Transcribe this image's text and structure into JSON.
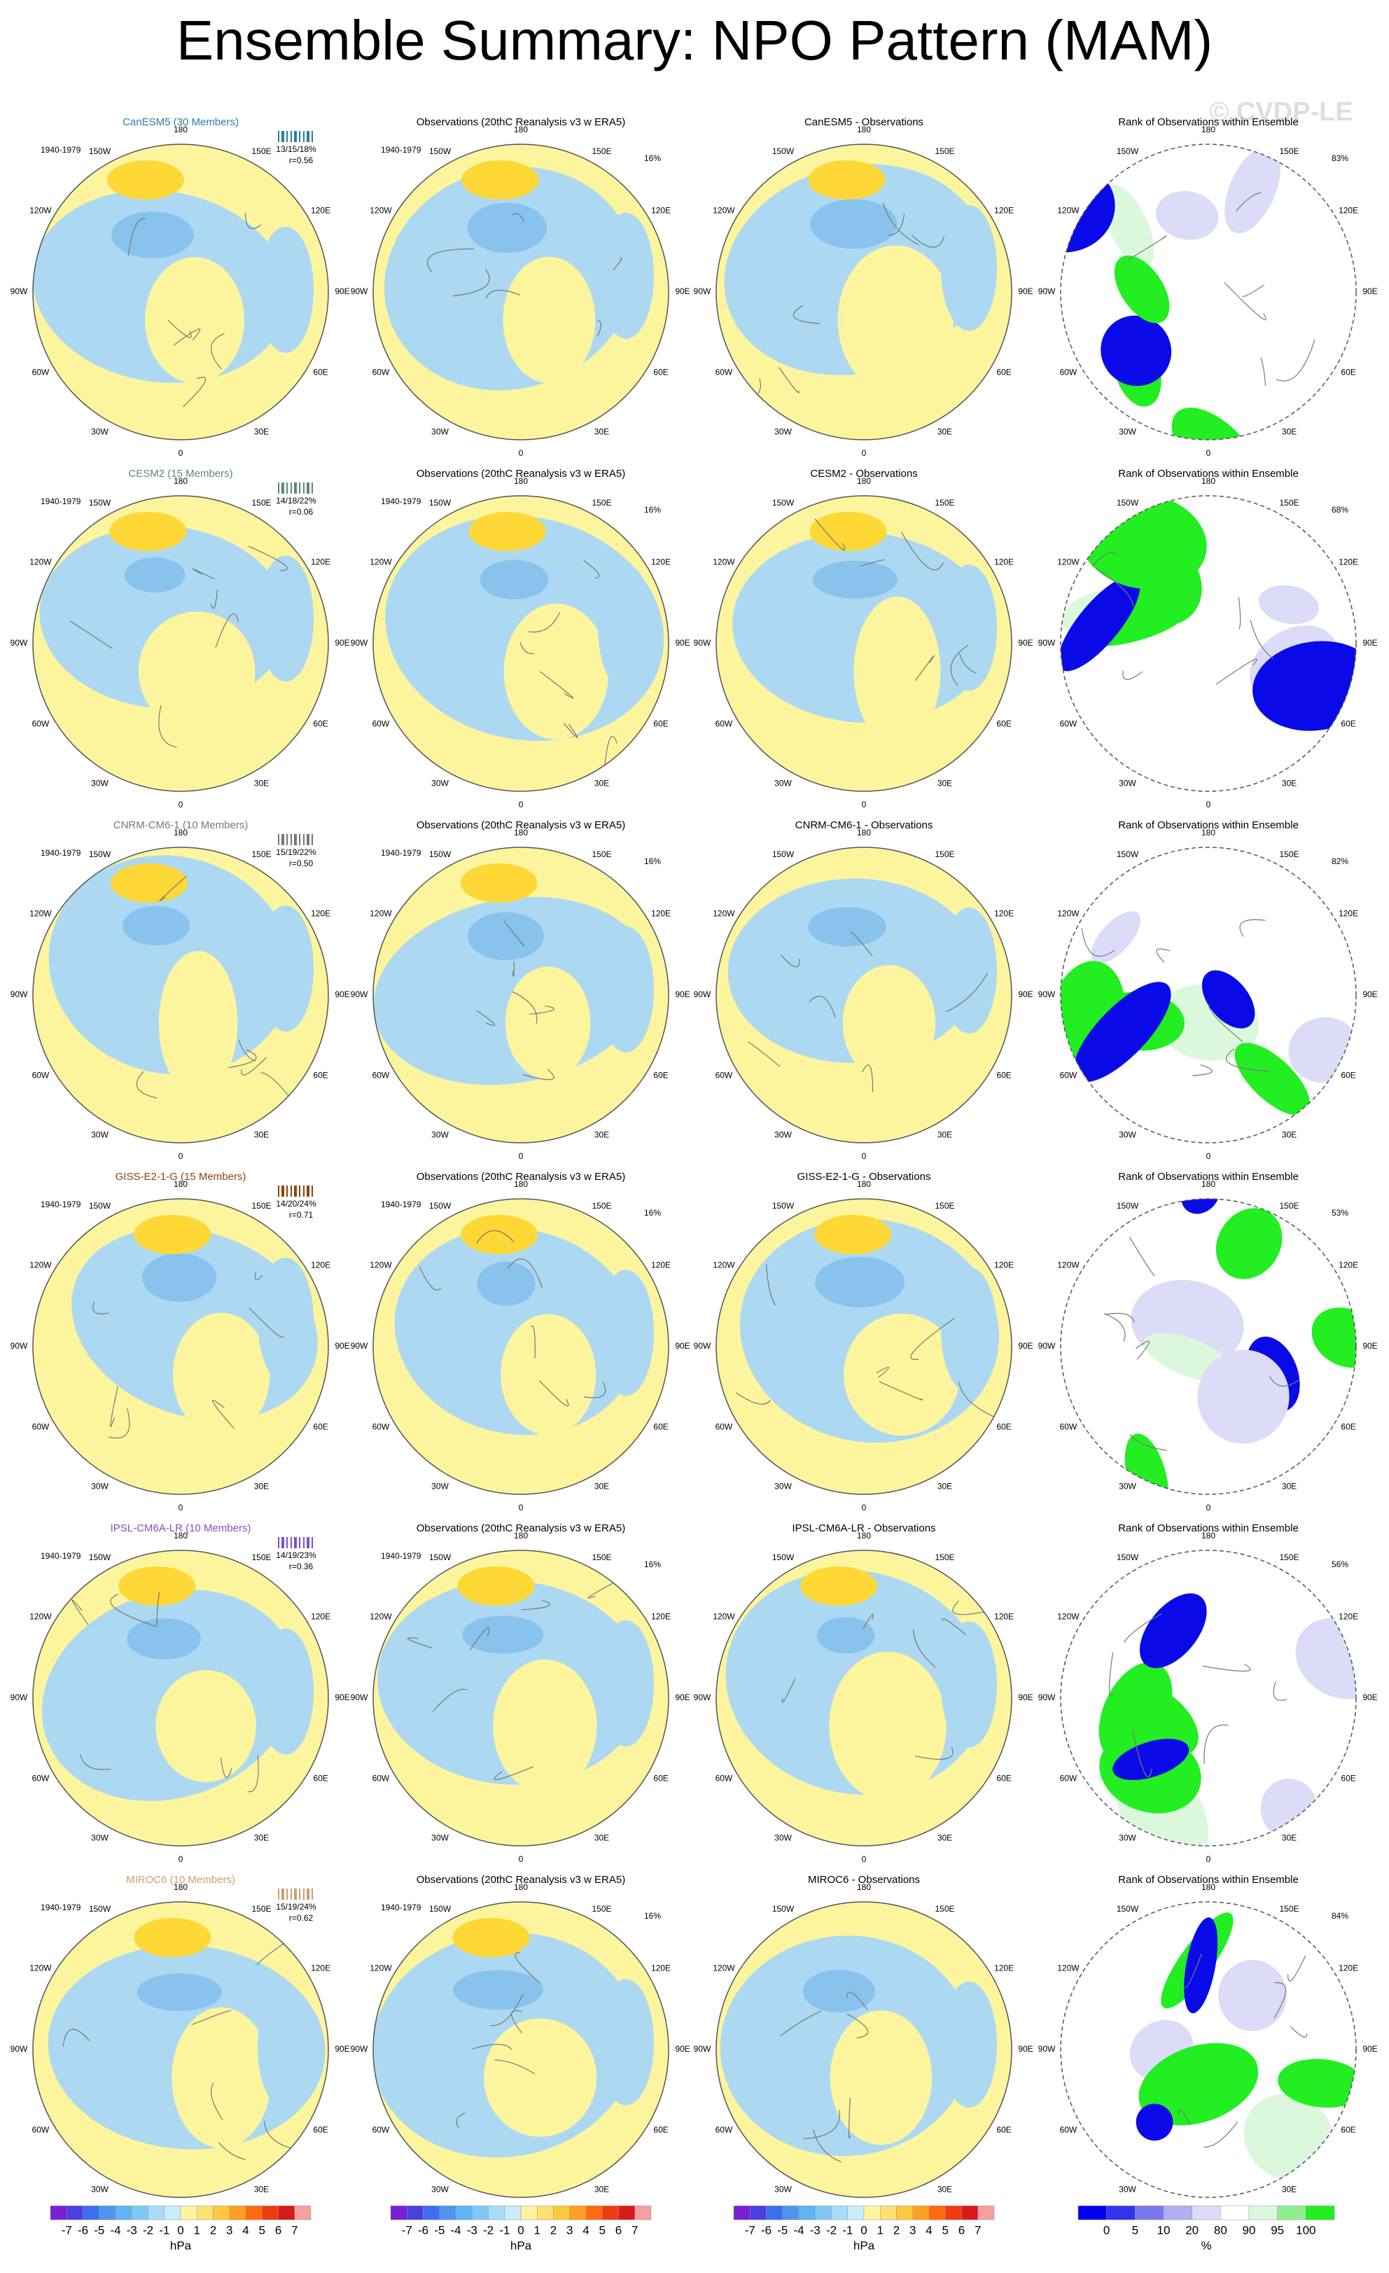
{
  "title": "Ensemble Summary: NPO Pattern (MAM)",
  "watermark": "© CVDP-LE",
  "longitudes": [
    "180",
    "150E",
    "120E",
    "90E",
    "60E",
    "30E",
    "0",
    "30W",
    "60W",
    "90W",
    "120W",
    "150W"
  ],
  "rows": [
    {
      "model": {
        "title": "CanESM5 (30 Members)",
        "color": "#2a7fa0",
        "period": "1940-1979",
        "stats": "13/15/18%",
        "r": "r=0.56"
      },
      "obs": {
        "title": "Observations (20thC Reanalysis v3 w ERA5)",
        "period": "1940-1979",
        "pct": "16%"
      },
      "diff": {
        "title": "CanESM5 - Observations"
      },
      "rank": {
        "title": "Rank of Observations within Ensemble",
        "pct": "83%"
      }
    },
    {
      "model": {
        "title": "CESM2 (15 Members)",
        "color": "#5e8a6e",
        "period": "1940-1979",
        "stats": "14/18/22%",
        "r": "r=0.06"
      },
      "obs": {
        "title": "Observations (20thC Reanalysis v3 w ERA5)",
        "period": "1940-1979",
        "pct": "16%"
      },
      "diff": {
        "title": "CESM2 - Observations"
      },
      "rank": {
        "title": "Rank of Observations within Ensemble",
        "pct": "68%"
      }
    },
    {
      "model": {
        "title": "CNRM-CM6-1 (10 Members)",
        "color": "#777777",
        "period": "1940-1979",
        "stats": "15/19/22%",
        "r": "r=0.50"
      },
      "obs": {
        "title": "Observations (20thC Reanalysis v3 w ERA5)",
        "period": "1940-1979",
        "pct": "16%"
      },
      "diff": {
        "title": "CNRM-CM6-1 - Observations"
      },
      "rank": {
        "title": "Rank of Observations within Ensemble",
        "pct": "82%"
      }
    },
    {
      "model": {
        "title": "GISS-E2-1-G (15 Members)",
        "color": "#8b4513",
        "period": "1940-1979",
        "stats": "14/20/24%",
        "r": "r=0.71"
      },
      "obs": {
        "title": "Observations (20thC Reanalysis v3 w ERA5)",
        "period": "1940-1979",
        "pct": "16%"
      },
      "diff": {
        "title": "GISS-E2-1-G - Observations"
      },
      "rank": {
        "title": "Rank of Observations within Ensemble",
        "pct": "53%"
      }
    },
    {
      "model": {
        "title": "IPSL-CM6A-LR (10 Members)",
        "color": "#7b52c8",
        "period": "1940-1979",
        "stats": "14/19/23%",
        "r": "r=0.36"
      },
      "obs": {
        "title": "Observations (20thC Reanalysis v3 w ERA5)",
        "period": "1940-1979",
        "pct": "16%"
      },
      "diff": {
        "title": "IPSL-CM6A-LR - Observations"
      },
      "rank": {
        "title": "Rank of Observations within Ensemble",
        "pct": "56%"
      }
    },
    {
      "model": {
        "title": "MIROC6 (10 Members)",
        "color": "#c8a070",
        "period": "1940-1979",
        "stats": "15/19/24%",
        "r": "r=0.62"
      },
      "obs": {
        "title": "Observations (20thC Reanalysis v3 w ERA5)",
        "period": "1940-1979",
        "pct": "16%"
      },
      "diff": {
        "title": "MIROC6 - Observations"
      },
      "rank": {
        "title": "Rank of Observations within Ensemble",
        "pct": "84%"
      }
    }
  ],
  "colorbars": [
    {
      "ticks": [
        -7,
        -6,
        -5,
        -4,
        -3,
        -2,
        -1,
        0,
        1,
        2,
        3,
        4,
        5,
        6,
        7
      ],
      "unit": "hPa",
      "colors": [
        "#7a1fd6",
        "#4a3fe0",
        "#3b6ff0",
        "#4f95f0",
        "#5fb5f2",
        "#7fc8f5",
        "#a9dcf7",
        "#c8ecfa",
        "#fff3a0",
        "#ffe070",
        "#ffc83c",
        "#ffa020",
        "#ff6a10",
        "#f03a10",
        "#d81a1a",
        "#f4a0a0"
      ]
    },
    {
      "ticks": [
        -7,
        -6,
        -5,
        -4,
        -3,
        -2,
        -1,
        0,
        1,
        2,
        3,
        4,
        5,
        6,
        7
      ],
      "unit": "hPa",
      "colors": [
        "#7a1fd6",
        "#4a3fe0",
        "#3b6ff0",
        "#4f95f0",
        "#5fb5f2",
        "#7fc8f5",
        "#a9dcf7",
        "#c8ecfa",
        "#fff3a0",
        "#ffe070",
        "#ffc83c",
        "#ffa020",
        "#ff6a10",
        "#f03a10",
        "#d81a1a",
        "#f4a0a0"
      ]
    },
    {
      "ticks": [
        -7,
        -6,
        -5,
        -4,
        -3,
        -2,
        -1,
        0,
        1,
        2,
        3,
        4,
        5,
        6,
        7
      ],
      "unit": "hPa",
      "colors": [
        "#7a1fd6",
        "#4a3fe0",
        "#3b6ff0",
        "#4f95f0",
        "#5fb5f2",
        "#7fc8f5",
        "#a9dcf7",
        "#c8ecfa",
        "#fff3a0",
        "#ffe070",
        "#ffc83c",
        "#ffa020",
        "#ff6a10",
        "#f03a10",
        "#d81a1a",
        "#f4a0a0"
      ]
    },
    {
      "ticks": [
        0,
        5,
        10,
        20,
        80,
        90,
        95,
        100
      ],
      "unit": "%",
      "colors": [
        "#0000ee",
        "#3333ee",
        "#7777ee",
        "#b0b0f0",
        "#dcdcf8",
        "#ffffff",
        "#dcf8dc",
        "#90ee90",
        "#22ee22"
      ]
    }
  ]
}
